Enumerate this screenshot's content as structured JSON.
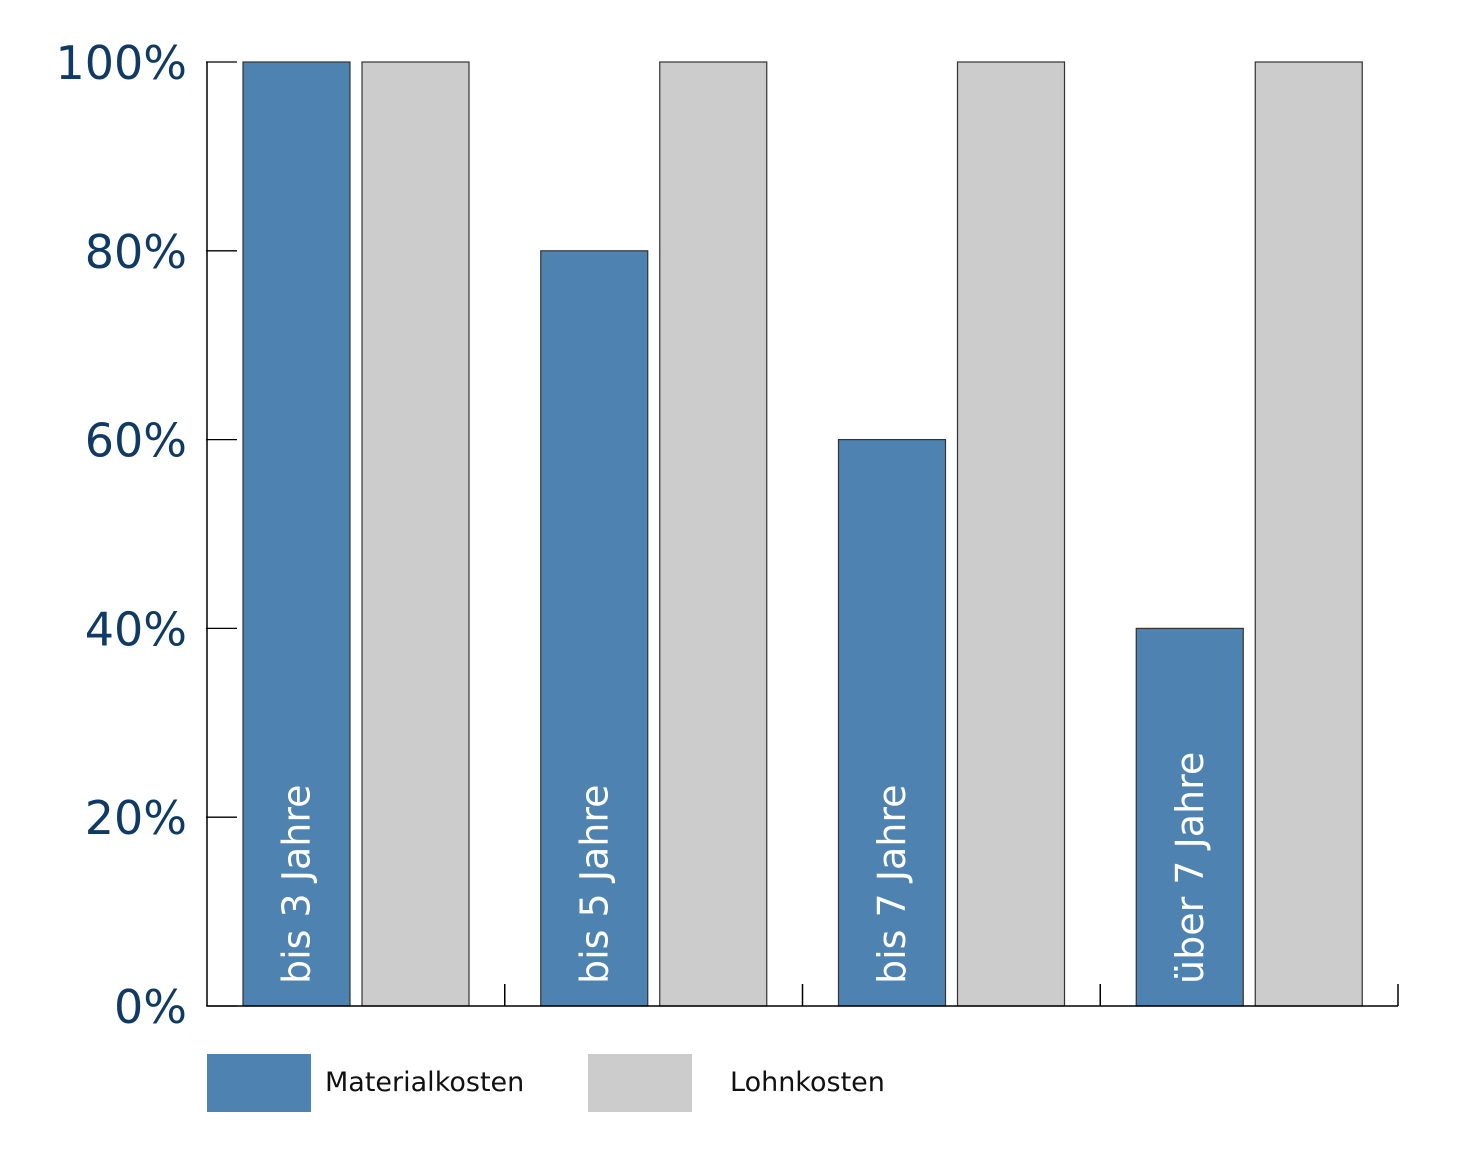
{
  "chart_data": {
    "type": "bar",
    "categories": [
      "bis 3 Jahre",
      "bis 5 Jahre",
      "bis 7 Jahre",
      "über 7 Jahre"
    ],
    "series": [
      {
        "name": "Materialkosten",
        "values": [
          100,
          80,
          60,
          40
        ],
        "color": "#4e83b1"
      },
      {
        "name": "Lohnkosten",
        "values": [
          100,
          100,
          100,
          100
        ],
        "color": "#cccccc"
      }
    ],
    "yticks": [
      0,
      20,
      40,
      60,
      80,
      100
    ],
    "ytick_labels": [
      "0%",
      "20%",
      "40%",
      "60%",
      "80%",
      "100%"
    ],
    "ylim": [
      0,
      100
    ],
    "grid": false,
    "legend": "bottom",
    "title": "",
    "xlabel": "",
    "ylabel": ""
  },
  "colors": {
    "axis": "#000000",
    "tick_label": "#0f3a66",
    "bar_stroke": "#333333",
    "category_label": "#ffffff"
  }
}
